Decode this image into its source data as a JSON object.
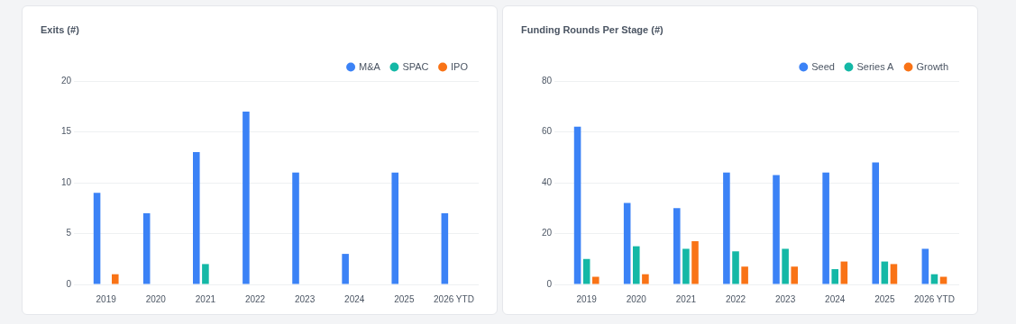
{
  "chart_data": [
    {
      "type": "bar",
      "title": "Exits (#)",
      "categories": [
        "2019",
        "2020",
        "2021",
        "2022",
        "2023",
        "2024",
        "2025",
        "2026 YTD"
      ],
      "series": [
        {
          "name": "M&A",
          "color": "#3b82f6",
          "values": [
            9,
            7,
            13,
            17,
            11,
            3,
            11,
            7
          ]
        },
        {
          "name": "SPAC",
          "color": "#14b8a6",
          "values": [
            0,
            0,
            2,
            0,
            0,
            0,
            0,
            0
          ]
        },
        {
          "name": "IPO",
          "color": "#f97316",
          "values": [
            1,
            0,
            0,
            0,
            0,
            0,
            0,
            0
          ]
        }
      ],
      "ylim": [
        0,
        20
      ],
      "yticks": [
        0,
        5,
        10,
        15,
        20
      ],
      "grid": "y",
      "legend": "top right"
    },
    {
      "type": "bar",
      "title": "Funding Rounds Per Stage (#)",
      "categories": [
        "2019",
        "2020",
        "2021",
        "2022",
        "2023",
        "2024",
        "2025",
        "2026 YTD"
      ],
      "series": [
        {
          "name": "Seed",
          "color": "#3b82f6",
          "values": [
            62,
            32,
            30,
            44,
            43,
            44,
            48,
            14
          ]
        },
        {
          "name": "Series A",
          "color": "#14b8a6",
          "values": [
            10,
            15,
            14,
            13,
            14,
            6,
            9,
            4
          ]
        },
        {
          "name": "Growth",
          "color": "#f97316",
          "values": [
            3,
            4,
            17,
            7,
            7,
            9,
            8,
            3
          ]
        }
      ],
      "ylim": [
        0,
        80
      ],
      "yticks": [
        0,
        20,
        40,
        60,
        80
      ],
      "grid": "y",
      "legend": "top right"
    }
  ]
}
